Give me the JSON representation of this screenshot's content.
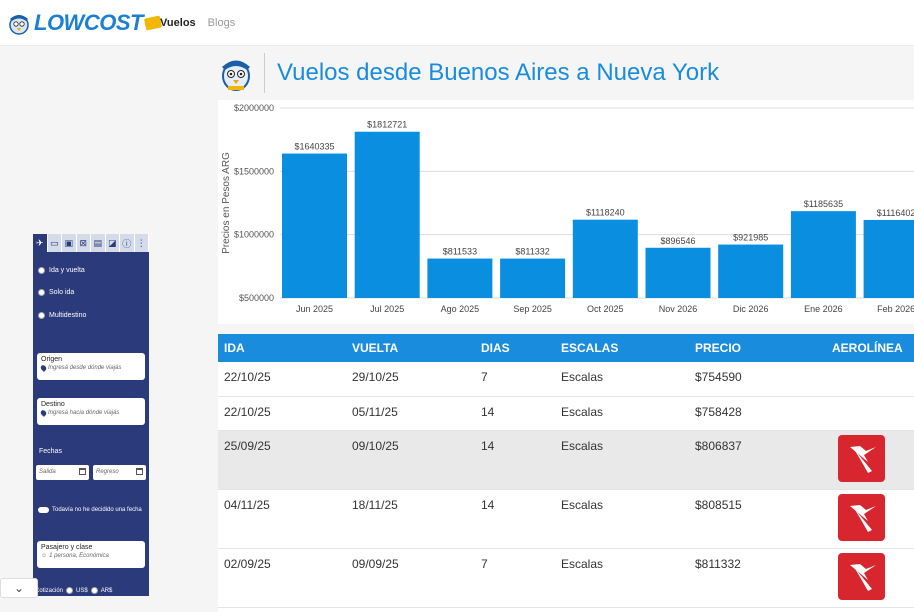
{
  "brand": {
    "logo_text": "LOWCOST"
  },
  "nav": {
    "items": [
      {
        "label": "Vuelos"
      },
      {
        "label": "Blogs"
      }
    ]
  },
  "sidebar": {
    "trip_options": [
      "Ida y vuelta",
      "Solo ida",
      "Multidestino"
    ],
    "origin": {
      "label": "Origen",
      "placeholder": "Ingresá desde dónde viajás"
    },
    "destination": {
      "label": "Destino",
      "placeholder": "Ingresá hacia dónde viajás"
    },
    "dates": {
      "label": "Fechas",
      "departure": "Salida",
      "return": "Regreso"
    },
    "undecided": "Todavía no he decidido una fecha",
    "passengers": {
      "label": "Pasajero y clase",
      "value": "1 persona, Económica"
    },
    "quote": {
      "label": "Cotización",
      "usd": "US$",
      "ars": "AR$"
    }
  },
  "page": {
    "title": "Vuelos desde Buenos Aires a Nueva York"
  },
  "chart_data": {
    "type": "bar",
    "ylabel": "Precios en Pesos ARG",
    "ylim": [
      500000,
      2000000
    ],
    "yticks": [
      "$500000",
      "$1000000",
      "$1500000",
      "$2000000"
    ],
    "ytick_values": [
      500000,
      1000000,
      1500000,
      2000000
    ],
    "categories": [
      "Jun 2025",
      "Jul 2025",
      "Ago 2025",
      "Sep 2025",
      "Oct 2025",
      "Nov 2026",
      "Dic 2026",
      "Ene 2026",
      "Feb 2026"
    ],
    "values": [
      1640335,
      1812721,
      811533,
      811332,
      1118240,
      896546,
      921985,
      1185635,
      1116402
    ],
    "labels": [
      "$1640335",
      "$1812721",
      "$811533",
      "$811332",
      "$1118240",
      "$896546",
      "$921985",
      "$1185635",
      "$1116402"
    ],
    "bar_color": "#0a8fe0"
  },
  "table": {
    "headers": [
      "IDA",
      "VUELTA",
      "DIAS",
      "ESCALAS",
      "PRECIO",
      "AEROLÍNEA"
    ],
    "rows": [
      {
        "ida": "22/10/25",
        "vuelta": "29/10/25",
        "dias": "7",
        "escalas": "Escalas",
        "precio": "$754590",
        "airline": false
      },
      {
        "ida": "22/10/25",
        "vuelta": "05/11/25",
        "dias": "14",
        "escalas": "Escalas",
        "precio": "$758428",
        "airline": false
      },
      {
        "ida": "25/09/25",
        "vuelta": "09/10/25",
        "dias": "14",
        "escalas": "Escalas",
        "precio": "$806837",
        "airline": true
      },
      {
        "ida": "04/11/25",
        "vuelta": "18/11/25",
        "dias": "14",
        "escalas": "Escalas",
        "precio": "$808515",
        "airline": true
      },
      {
        "ida": "02/09/25",
        "vuelta": "09/09/25",
        "dias": "7",
        "escalas": "Escalas",
        "precio": "$811332",
        "airline": true
      }
    ],
    "airline_logo_color": "#d8262f"
  }
}
